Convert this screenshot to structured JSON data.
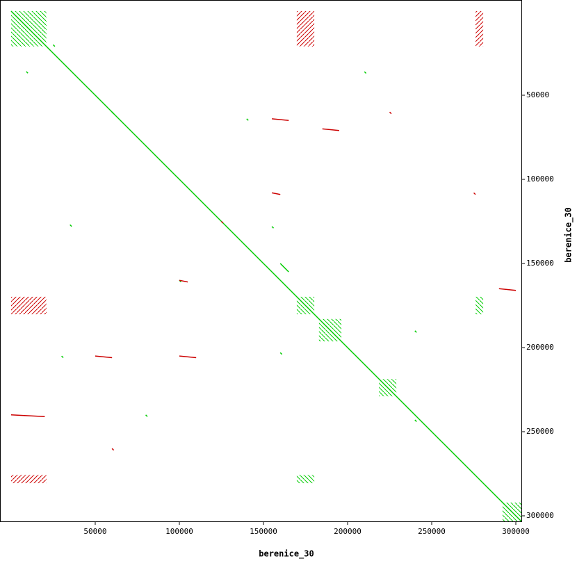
{
  "chart_data": {
    "type": "dotplot",
    "x_label": "berenice_30",
    "y_label": "berenice_30",
    "xlim": [
      -6600,
      303300
    ],
    "ylim": [
      -6600,
      303300
    ],
    "xticks": [
      50000,
      100000,
      150000,
      200000,
      250000,
      300000
    ],
    "yticks": [
      50000,
      100000,
      150000,
      200000,
      250000,
      300000
    ],
    "series": [
      {
        "color": "#00cc00",
        "segments": [
          [
            0,
            0,
            303300,
            303300
          ],
          [
            9000,
            35900,
            10000,
            36900
          ],
          [
            60000,
            60000,
            61000,
            61000
          ],
          [
            25000,
            20000,
            26000,
            21000
          ],
          [
            35000,
            127000,
            36000,
            128000
          ],
          [
            100000,
            160000,
            101000,
            161000
          ],
          [
            155000,
            128000,
            156000,
            129000
          ],
          [
            160000,
            203000,
            161000,
            204000
          ],
          [
            240000,
            190000,
            241000,
            191000
          ],
          [
            240000,
            243000,
            241000,
            244000
          ],
          [
            140000,
            64000,
            141000,
            65000
          ],
          [
            210000,
            36000,
            211000,
            37000
          ],
          [
            30000,
            205000,
            31000,
            206000
          ],
          [
            160000,
            150000,
            165000,
            155000
          ],
          [
            80000,
            240000,
            81000,
            241000
          ]
        ],
        "blocks": [
          [
            0,
            21000,
            0,
            21000
          ],
          [
            169800,
            180200,
            169800,
            180200
          ],
          [
            183000,
            196300,
            183000,
            196300
          ],
          [
            218600,
            229000,
            218600,
            229000
          ],
          [
            292100,
            303300,
            292100,
            303300
          ],
          [
            276000,
            280600,
            169800,
            180200
          ],
          [
            169800,
            180200,
            275600,
            280600
          ]
        ]
      },
      {
        "color": "#cc0000",
        "segments": [
          [
            155000,
            64000,
            165000,
            65000
          ],
          [
            185000,
            70000,
            195000,
            71000
          ],
          [
            155000,
            108000,
            160000,
            109000
          ],
          [
            100000,
            160000,
            105000,
            161000
          ],
          [
            50000,
            205000,
            60000,
            206000
          ],
          [
            100000,
            205000,
            110000,
            206000
          ],
          [
            125000,
            125000,
            126000,
            126000
          ],
          [
            0,
            240000,
            20000,
            241000
          ],
          [
            275000,
            108000,
            276000,
            109000
          ],
          [
            60000,
            260000,
            61000,
            261000
          ],
          [
            225000,
            60000,
            226000,
            61000
          ],
          [
            290000,
            165000,
            300000,
            166000
          ]
        ],
        "blocks": [
          [
            169800,
            180200,
            0,
            21000
          ],
          [
            276000,
            280600,
            0,
            21000
          ],
          [
            0,
            21000,
            169800,
            180200
          ],
          [
            0,
            21000,
            275600,
            280600
          ]
        ]
      }
    ]
  }
}
